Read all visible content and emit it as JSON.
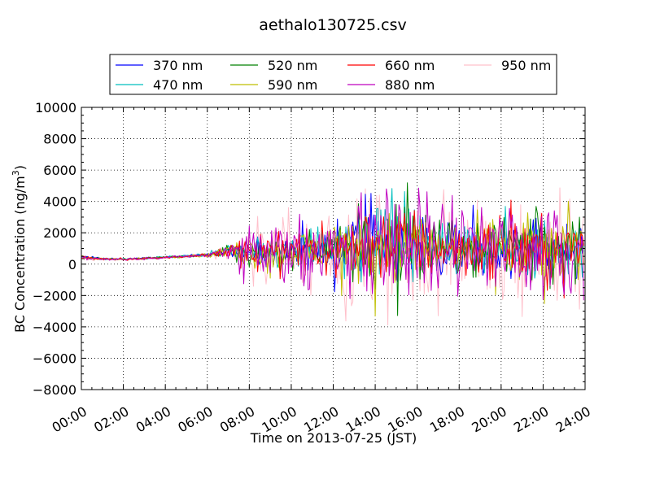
{
  "chart_data": {
    "type": "line",
    "title": "aethalo130725.csv",
    "xlabel": "Time on 2013-07-25 (JST)",
    "ylabel": "BC Concentration (ng/m³)",
    "ylabel_main": "BC Concentration (ng/m",
    "ylabel_sup": "3",
    "ylabel_close": ")",
    "xlim": [
      "00:00",
      "24:00"
    ],
    "ylim": [
      -8000,
      10000
    ],
    "xticks": [
      "00:00",
      "02:00",
      "04:00",
      "06:00",
      "08:00",
      "10:00",
      "12:00",
      "14:00",
      "16:00",
      "18:00",
      "20:00",
      "22:00",
      "24:00"
    ],
    "yticks": [
      "−8000",
      "−6000",
      "−4000",
      "−2000",
      "0",
      "2000",
      "4000",
      "6000",
      "8000",
      "10000"
    ],
    "grid": true,
    "legend_position": "top",
    "series": [
      {
        "name": "370 nm",
        "color": "#0000ff",
        "x": [
          "00:00",
          "01:00",
          "02:00",
          "03:00",
          "04:00",
          "05:00",
          "06:00",
          "07:00",
          "08:00",
          "09:00",
          "10:00",
          "11:00",
          "12:00",
          "13:00",
          "14:00",
          "15:00",
          "16:00",
          "17:00",
          "18:00",
          "19:00",
          "20:00",
          "21:00",
          "22:00",
          "23:00",
          "23:59"
        ],
        "values": [
          450,
          350,
          320,
          380,
          450,
          520,
          600,
          850,
          900,
          700,
          800,
          900,
          1000,
          1200,
          1500,
          1200,
          1300,
          1100,
          1000,
          1100,
          1000,
          900,
          1000,
          900,
          800
        ],
        "noise": [
          100,
          60,
          50,
          50,
          60,
          70,
          100,
          300,
          700,
          900,
          1000,
          1100,
          1300,
          1600,
          2000,
          2000,
          1800,
          1500,
          1300,
          1300,
          1400,
          1400,
          1500,
          1600,
          1400
        ]
      },
      {
        "name": "470 nm",
        "color": "#00bfbf",
        "x": [
          "00:00",
          "01:00",
          "02:00",
          "03:00",
          "04:00",
          "05:00",
          "06:00",
          "07:00",
          "08:00",
          "09:00",
          "10:00",
          "11:00",
          "12:00",
          "13:00",
          "14:00",
          "15:00",
          "16:00",
          "17:00",
          "18:00",
          "19:00",
          "20:00",
          "21:00",
          "22:00",
          "23:00",
          "23:59"
        ],
        "values": [
          440,
          340,
          320,
          370,
          450,
          510,
          590,
          840,
          880,
          690,
          790,
          880,
          990,
          1180,
          1480,
          1190,
          1290,
          1090,
          990,
          1090,
          990,
          890,
          990,
          890,
          790
        ],
        "noise": [
          100,
          60,
          50,
          50,
          60,
          70,
          100,
          300,
          700,
          900,
          1000,
          1100,
          1300,
          1600,
          2000,
          2000,
          1800,
          1500,
          1300,
          1300,
          1400,
          1400,
          1500,
          1600,
          1400
        ]
      },
      {
        "name": "520 nm",
        "color": "#008000",
        "x": [
          "00:00",
          "01:00",
          "02:00",
          "03:00",
          "04:00",
          "05:00",
          "06:00",
          "07:00",
          "08:00",
          "09:00",
          "10:00",
          "11:00",
          "12:00",
          "13:00",
          "14:00",
          "15:00",
          "16:00",
          "17:00",
          "18:00",
          "19:00",
          "20:00",
          "21:00",
          "22:00",
          "23:00",
          "23:59"
        ],
        "values": [
          430,
          340,
          310,
          370,
          440,
          500,
          580,
          830,
          870,
          680,
          780,
          870,
          980,
          1170,
          1470,
          1180,
          1280,
          1080,
          980,
          1080,
          980,
          880,
          980,
          880,
          780
        ],
        "noise": [
          110,
          60,
          50,
          50,
          60,
          70,
          100,
          300,
          800,
          1000,
          1100,
          1200,
          1400,
          1700,
          2100,
          2100,
          1900,
          1600,
          1400,
          1400,
          1500,
          1500,
          1600,
          1700,
          1500
        ]
      },
      {
        "name": "590 nm",
        "color": "#bfbf00",
        "x": [
          "00:00",
          "01:00",
          "02:00",
          "03:00",
          "04:00",
          "05:00",
          "06:00",
          "07:00",
          "08:00",
          "09:00",
          "10:00",
          "11:00",
          "12:00",
          "13:00",
          "14:00",
          "15:00",
          "16:00",
          "17:00",
          "18:00",
          "19:00",
          "20:00",
          "21:00",
          "22:00",
          "23:00",
          "23:59"
        ],
        "values": [
          420,
          330,
          310,
          360,
          440,
          500,
          580,
          820,
          860,
          670,
          770,
          860,
          970,
          1160,
          1460,
          1170,
          1270,
          1070,
          970,
          1070,
          970,
          870,
          970,
          870,
          770
        ],
        "noise": [
          110,
          60,
          50,
          50,
          60,
          70,
          100,
          300,
          900,
          1100,
          1200,
          1300,
          1500,
          1800,
          2200,
          2200,
          2000,
          1700,
          1500,
          1500,
          1600,
          1600,
          1700,
          1800,
          1600
        ]
      },
      {
        "name": "660 nm",
        "color": "#ff0000",
        "x": [
          "00:00",
          "01:00",
          "02:00",
          "03:00",
          "04:00",
          "05:00",
          "06:00",
          "07:00",
          "08:00",
          "09:00",
          "10:00",
          "11:00",
          "12:00",
          "13:00",
          "14:00",
          "15:00",
          "16:00",
          "17:00",
          "18:00",
          "19:00",
          "20:00",
          "21:00",
          "22:00",
          "23:00",
          "23:59"
        ],
        "values": [
          410,
          330,
          300,
          360,
          430,
          490,
          570,
          810,
          850,
          660,
          760,
          850,
          960,
          1150,
          1450,
          1160,
          1260,
          1060,
          960,
          1060,
          960,
          860,
          960,
          860,
          760
        ],
        "noise": [
          120,
          60,
          50,
          50,
          60,
          70,
          100,
          300,
          900,
          1100,
          1200,
          1300,
          1500,
          1800,
          2200,
          2200,
          2000,
          1700,
          1500,
          1500,
          1600,
          1600,
          1700,
          1800,
          1600
        ]
      },
      {
        "name": "880 nm",
        "color": "#bf00bf",
        "x": [
          "00:00",
          "01:00",
          "02:00",
          "03:00",
          "04:00",
          "05:00",
          "06:00",
          "07:00",
          "08:00",
          "09:00",
          "10:00",
          "11:00",
          "12:00",
          "13:00",
          "14:00",
          "15:00",
          "16:00",
          "17:00",
          "18:00",
          "19:00",
          "20:00",
          "21:00",
          "22:00",
          "23:00",
          "23:59"
        ],
        "values": [
          400,
          320,
          300,
          350,
          430,
          490,
          570,
          800,
          840,
          650,
          750,
          840,
          950,
          1140,
          1440,
          1150,
          1250,
          1050,
          950,
          1050,
          950,
          850,
          950,
          850,
          750
        ],
        "noise": [
          130,
          70,
          60,
          60,
          70,
          80,
          120,
          350,
          1400,
          1800,
          1900,
          2000,
          2300,
          2700,
          3300,
          3300,
          3000,
          2500,
          2200,
          2200,
          2400,
          2400,
          2600,
          2800,
          2400
        ]
      },
      {
        "name": "950 nm",
        "color": "#ffc0cb",
        "x": [
          "00:00",
          "01:00",
          "02:00",
          "03:00",
          "04:00",
          "05:00",
          "06:00",
          "07:00",
          "08:00",
          "09:00",
          "10:00",
          "11:00",
          "12:00",
          "13:00",
          "14:00",
          "15:00",
          "16:00",
          "17:00",
          "18:00",
          "19:00",
          "20:00",
          "21:00",
          "22:00",
          "23:00",
          "23:59"
        ],
        "values": [
          390,
          320,
          300,
          350,
          420,
          480,
          560,
          790,
          830,
          640,
          740,
          830,
          940,
          1130,
          1430,
          1140,
          1240,
          1040,
          940,
          1040,
          940,
          840,
          940,
          840,
          740
        ],
        "noise": [
          200,
          100,
          70,
          60,
          70,
          80,
          130,
          400,
          1600,
          2100,
          2200,
          2300,
          2600,
          3200,
          3800,
          3800,
          3400,
          2900,
          2500,
          2500,
          2700,
          2700,
          3000,
          3200,
          2800
        ]
      }
    ]
  }
}
